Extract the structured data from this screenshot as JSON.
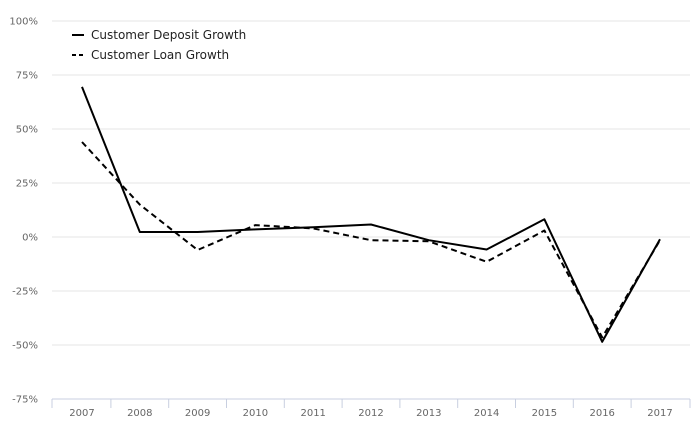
{
  "chart_data": {
    "type": "line",
    "title": "",
    "xlabel": "",
    "ylabel": "",
    "categories": [
      "2007",
      "2008",
      "2009",
      "2010",
      "2011",
      "2012",
      "2013",
      "2014",
      "2015",
      "2016",
      "2017"
    ],
    "ylim": [
      -75,
      100
    ],
    "yticks": [
      100,
      75,
      50,
      25,
      0,
      -25,
      -50,
      -75
    ],
    "ytick_labels": [
      "100%",
      "75%",
      "50%",
      "25%",
      "0%",
      "-25%",
      "-50%",
      "-75%"
    ],
    "grid": "horizontal",
    "legend_position": "top-left",
    "series": [
      {
        "name": "Customer Deposit Growth",
        "style": "solid",
        "color": "#000000",
        "values": [
          69.5,
          2.3,
          2.3,
          3.5,
          4.5,
          5.8,
          -1.5,
          -5.8,
          8.2,
          -48.5,
          -1.0
        ]
      },
      {
        "name": "Customer Loan Growth",
        "style": "dashed",
        "color": "#000000",
        "values": [
          44.0,
          15.0,
          -6.0,
          5.5,
          4.0,
          -1.5,
          -2.0,
          -11.5,
          3.0,
          -46.5,
          -1.5
        ]
      }
    ]
  }
}
